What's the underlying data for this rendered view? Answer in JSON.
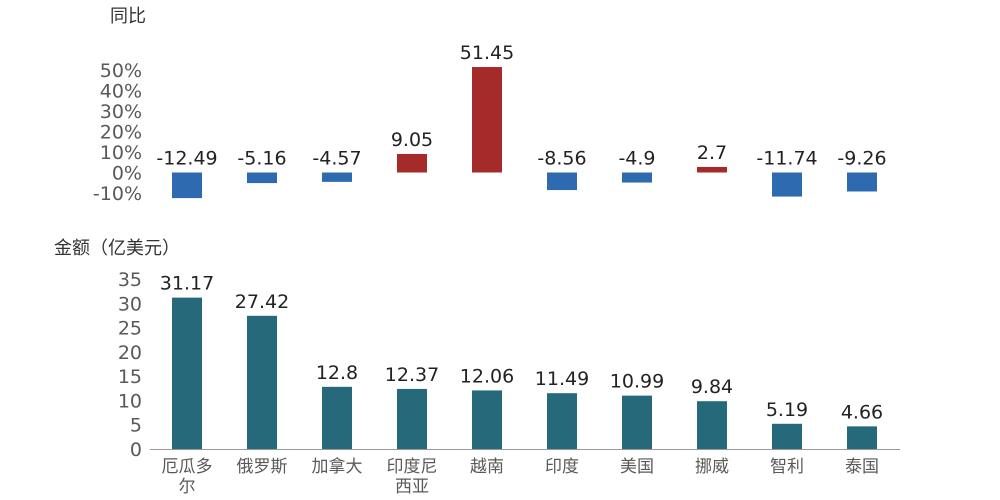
{
  "chart_data": [
    {
      "type": "bar",
      "ylabel": "同比",
      "categories": [
        "厄瓜多尔",
        "俄罗斯",
        "加拿大",
        "印度尼西亚",
        "越南",
        "印度",
        "美国",
        "挪威",
        "智利",
        "泰国"
      ],
      "values": [
        -12.49,
        -5.16,
        -4.57,
        9.05,
        51.45,
        -8.56,
        -4.9,
        2.7,
        -11.74,
        -9.26
      ],
      "data_labels": [
        "-12.49",
        "-5.16",
        "-4.57",
        "9.05",
        "51.45",
        "-8.56",
        "-4.9",
        "2.7",
        "-11.74",
        "-9.26"
      ],
      "ylim": [
        -10,
        50
      ],
      "yticks": [
        -10,
        0,
        10,
        20,
        30,
        40,
        50
      ],
      "ytick_labels": [
        "-10%",
        "0%",
        "10%",
        "20%",
        "30%",
        "40%",
        "50%"
      ],
      "colors": {
        "positive": "#A52A2A",
        "negative": "#2E6AB0"
      },
      "grid": false
    },
    {
      "type": "bar",
      "ylabel": "金额（亿美元）",
      "categories": [
        "厄瓜多尔",
        "俄罗斯",
        "加拿大",
        "印度尼西亚",
        "越南",
        "印度",
        "美国",
        "挪威",
        "智利",
        "泰国"
      ],
      "category_labels": [
        [
          "厄瓜多",
          "尔"
        ],
        [
          "俄罗斯"
        ],
        [
          "加拿大"
        ],
        [
          "印度尼",
          "西亚"
        ],
        [
          "越南"
        ],
        [
          "印度"
        ],
        [
          "美国"
        ],
        [
          "挪威"
        ],
        [
          "智利"
        ],
        [
          "泰国"
        ]
      ],
      "values": [
        31.17,
        27.42,
        12.8,
        12.37,
        12.06,
        11.49,
        10.99,
        9.84,
        5.19,
        4.66
      ],
      "data_labels": [
        "31.17",
        "27.42",
        "12.8",
        "12.37",
        "12.06",
        "11.49",
        "10.99",
        "9.84",
        "5.19",
        "4.66"
      ],
      "ylim": [
        0,
        35
      ],
      "yticks": [
        0,
        5,
        10,
        15,
        20,
        25,
        30,
        35
      ],
      "ytick_labels": [
        "0",
        "5",
        "10",
        "15",
        "20",
        "25",
        "30",
        "35"
      ],
      "colors": {
        "bar": "#25697A",
        "axis": "#999999"
      },
      "grid": false
    }
  ]
}
